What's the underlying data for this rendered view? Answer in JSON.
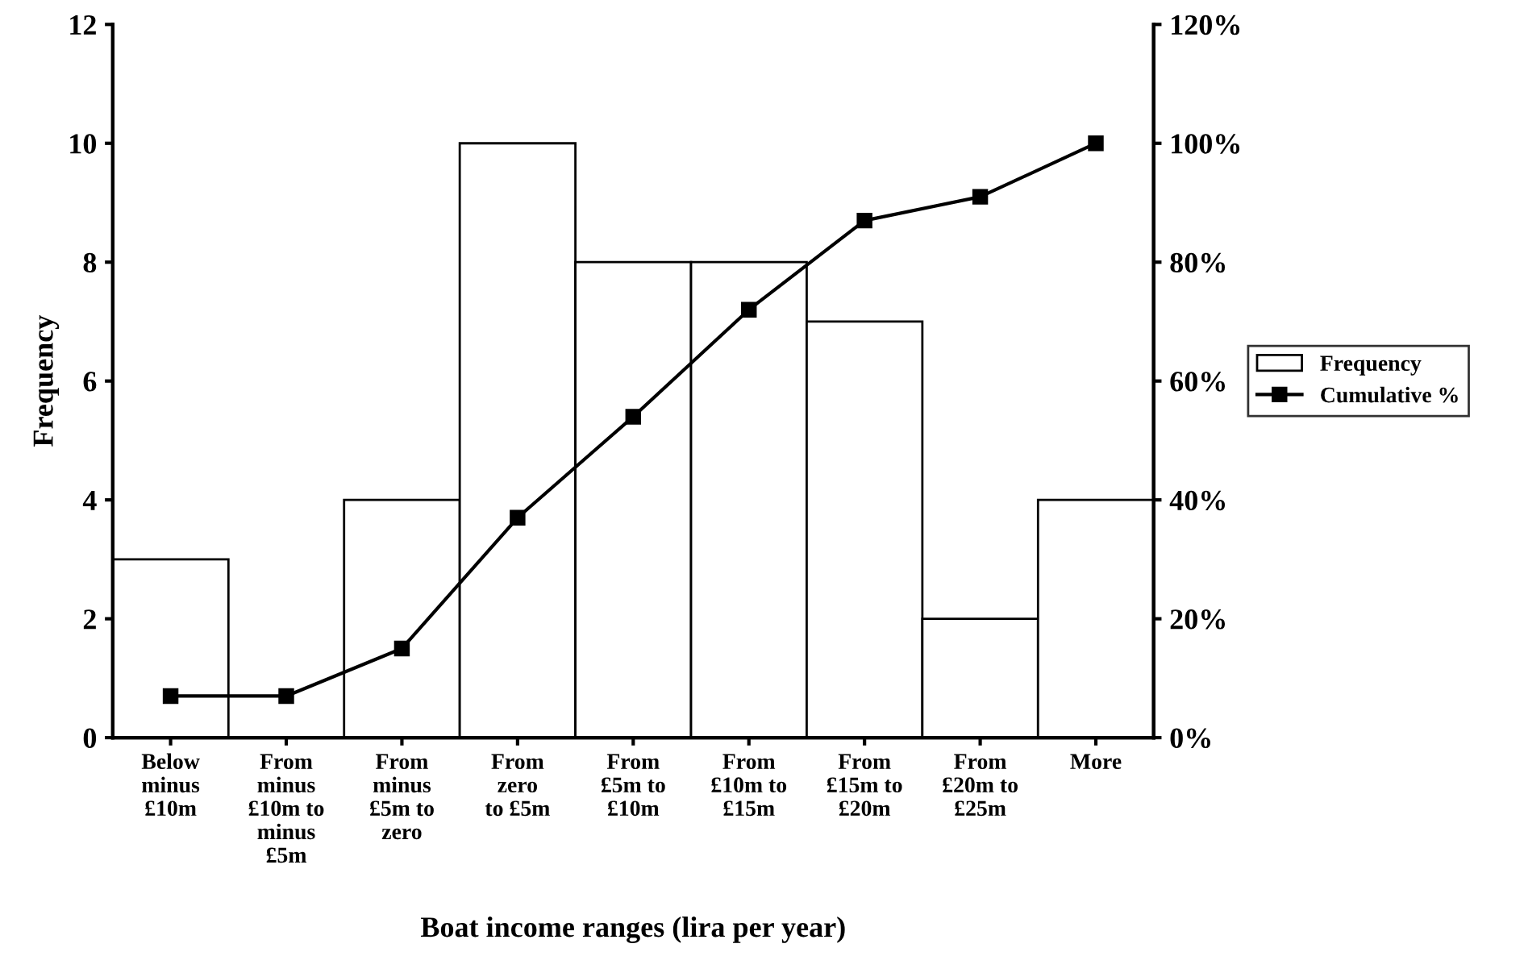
{
  "chart_data": {
    "type": "bar",
    "xlabel": "Boat income ranges (lira per year)",
    "ylabel": "Frequency",
    "categories": [
      "Below\nminus\n£10m",
      "From\nminus\n£10m to\nminus\n£5m",
      "From\nminus\n£5m to\nzero",
      "From\nzero\nto £5m",
      "From\n£5m to\n£10m",
      "From\n£10m to\n£15m",
      "From\n£15m to\n£20m",
      "From\n£20m to\n£25m",
      "More"
    ],
    "series": [
      {
        "name": "Frequency",
        "color": "#ffffff",
        "values": [
          3,
          0,
          4,
          10,
          8,
          8,
          7,
          2,
          4
        ]
      },
      {
        "name": "Cumulative %",
        "type": "line",
        "axis": "y2",
        "color": "#000000",
        "marker": "square",
        "values": [
          7,
          7,
          15,
          37,
          54,
          72,
          87,
          91,
          100
        ]
      }
    ],
    "ylim": [
      0,
      12
    ],
    "yticks": [
      0,
      2,
      4,
      6,
      8,
      10,
      12
    ],
    "y2lim": [
      0,
      120
    ],
    "y2ticks": [
      {
        "value": 0,
        "label": "0%"
      },
      {
        "value": 20,
        "label": "20%"
      },
      {
        "value": 40,
        "label": "40%"
      },
      {
        "value": 60,
        "label": "60%"
      },
      {
        "value": 80,
        "label": "80%"
      },
      {
        "value": 100,
        "label": "100%"
      },
      {
        "value": 120,
        "label": "120%"
      }
    ],
    "grid": false,
    "legend": "right"
  }
}
